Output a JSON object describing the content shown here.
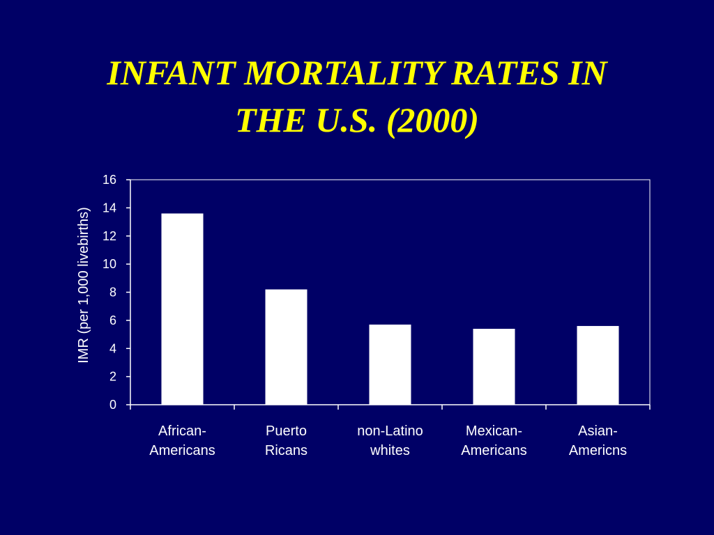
{
  "slide": {
    "title_line1": "INFANT MORTALITY RATES IN",
    "title_line2": "THE U.S. (2000)"
  },
  "colors": {
    "background": "#000066",
    "title": "#ffff00",
    "bars": "#ffffff",
    "axis": "#ffffff"
  },
  "chart_data": {
    "type": "bar",
    "title": "INFANT MORTALITY RATES IN THE U.S. (2000)",
    "ylabel": "IMR (per 1,000 livebirths)",
    "xlabel": "",
    "categories": [
      [
        "African-",
        "Americans"
      ],
      [
        "Puerto",
        "Ricans"
      ],
      [
        "non-Latino",
        "whites"
      ],
      [
        "Mexican-",
        "Americans"
      ],
      [
        "Asian-",
        "Americns"
      ]
    ],
    "values": [
      13.6,
      8.2,
      5.7,
      5.4,
      5.6
    ],
    "ylim": [
      0,
      16
    ],
    "yticks": [
      0,
      2,
      4,
      6,
      8,
      10,
      12,
      14,
      16
    ],
    "grid": false,
    "legend": "none"
  }
}
